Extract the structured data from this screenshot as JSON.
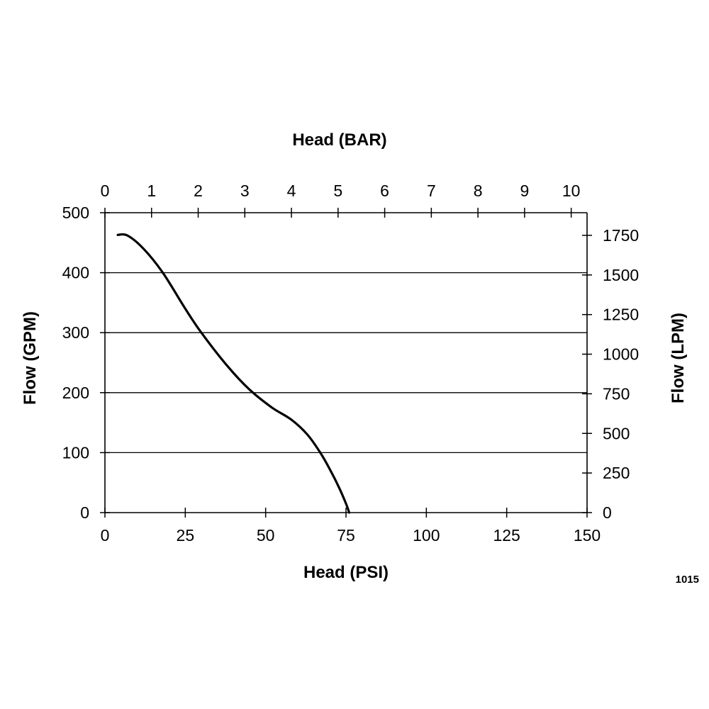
{
  "chart_data": {
    "type": "line",
    "x_axis_bottom": {
      "label": "Head (PSI)",
      "range": [
        0,
        150
      ],
      "ticks": [
        0,
        25,
        50,
        75,
        100,
        125,
        150
      ]
    },
    "x_axis_top": {
      "label": "Head (BAR)",
      "range": [
        0,
        10.34
      ],
      "ticks": [
        0,
        1,
        2,
        3,
        4,
        5,
        6,
        7,
        8,
        9,
        10
      ]
    },
    "y_axis_left": {
      "label": "Flow (GPM)",
      "range": [
        0,
        500
      ],
      "ticks": [
        0,
        100,
        200,
        300,
        400,
        500
      ]
    },
    "y_axis_right": {
      "label": "Flow (LPM)",
      "range": [
        0,
        1893
      ],
      "ticks": [
        0,
        250,
        500,
        750,
        1000,
        1250,
        1500,
        1750
      ]
    },
    "grid": "horizontal",
    "series": [
      {
        "x": [
          4,
          7,
          12,
          18,
          25,
          30,
          38,
          45,
          52,
          58,
          63,
          67,
          70,
          73,
          75,
          76
        ],
        "y": [
          463,
          462,
          440,
          400,
          340,
          300,
          245,
          205,
          175,
          155,
          130,
          100,
          72,
          40,
          15,
          0
        ]
      }
    ],
    "footnote": "1015"
  }
}
